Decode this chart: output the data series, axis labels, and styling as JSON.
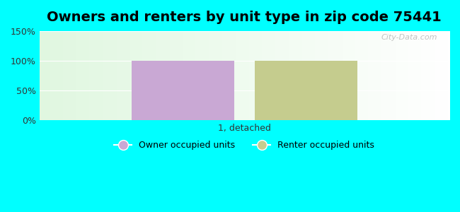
{
  "title": "Owners and renters by unit type in zip code 75441",
  "categories": [
    "1, detached"
  ],
  "owner_values": [
    100
  ],
  "renter_values": [
    100
  ],
  "owner_color": "#c9a8d4",
  "renter_color": "#c5cc8e",
  "ylim": [
    0,
    150
  ],
  "yticks": [
    0,
    50,
    100,
    150
  ],
  "ytick_labels": [
    "0%",
    "50%",
    "100%",
    "150%"
  ],
  "background_color": "#00FFFF",
  "owner_label": "Owner occupied units",
  "renter_label": "Renter occupied units",
  "watermark": "City-Data.com",
  "title_fontsize": 14,
  "bar_width": 0.3
}
